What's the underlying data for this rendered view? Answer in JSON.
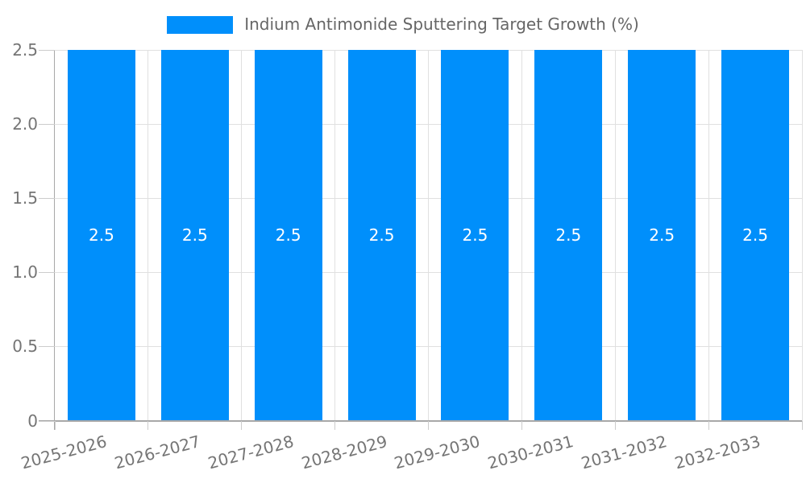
{
  "chart_data": {
    "type": "bar",
    "title": "Indium Antimonide Sputtering Target Growth (%)",
    "legend": {
      "label": "Indium Antimonide Sputtering Target Growth (%)",
      "position": "top"
    },
    "categories": [
      "2025-2026",
      "2026-2027",
      "2027-2028",
      "2028-2029",
      "2029-2030",
      "2030-2031",
      "2031-2032",
      "2032-2033"
    ],
    "values": [
      2.5,
      2.5,
      2.5,
      2.5,
      2.5,
      2.5,
      2.5,
      2.5
    ],
    "bar_labels": [
      "2.5",
      "2.5",
      "2.5",
      "2.5",
      "2.5",
      "2.5",
      "2.5",
      "2.5"
    ],
    "xlabel": "",
    "ylabel": "",
    "ylim": [
      0,
      2.5
    ],
    "yticks": [
      0,
      0.5,
      1.0,
      1.5,
      2.0,
      2.5
    ],
    "ytick_labels": [
      "0",
      "0.5",
      "1.0",
      "1.5",
      "2.0",
      "2.5"
    ],
    "x_label_rotation_deg": -15,
    "grid": true,
    "colors": {
      "bar": "#008ffb",
      "bar_label": "#ffffff",
      "grid": "#e0e0e0",
      "axis": "#a8a8a8",
      "tick": "#cccccc",
      "tick_label": "#757575",
      "title": "#666666",
      "background": "#ffffff"
    }
  }
}
